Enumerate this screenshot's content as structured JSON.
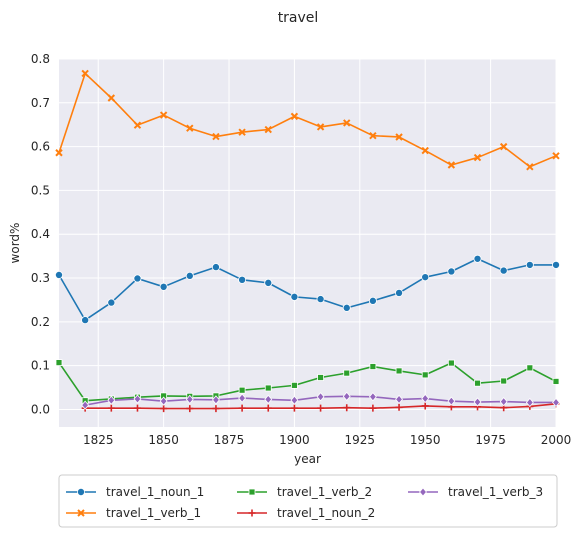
{
  "chart_data": {
    "type": "line",
    "title": "travel",
    "xlabel": "year",
    "ylabel": "word%",
    "xlim": [
      1810,
      2000
    ],
    "ylim": [
      -0.04,
      0.8
    ],
    "xticks": [
      1825,
      1850,
      1875,
      1900,
      1925,
      1950,
      1975,
      2000
    ],
    "yticks": [
      0.0,
      0.1,
      0.2,
      0.3,
      0.4,
      0.5,
      0.6,
      0.7,
      0.8
    ],
    "ytick_labels": [
      "0.0",
      "0.1",
      "0.2",
      "0.3",
      "0.4",
      "0.5",
      "0.6",
      "0.7",
      "0.8"
    ],
    "grid": true,
    "legend_location": "bottom-outside",
    "series": [
      {
        "name": "travel_1_noun_1",
        "color": "#1f77b4",
        "marker": "circle",
        "x": [
          1810,
          1820,
          1830,
          1840,
          1850,
          1860,
          1870,
          1880,
          1890,
          1900,
          1910,
          1920,
          1930,
          1940,
          1950,
          1960,
          1970,
          1980,
          1990,
          2000
        ],
        "values": [
          0.307,
          0.204,
          0.244,
          0.299,
          0.28,
          0.305,
          0.325,
          0.296,
          0.289,
          0.257,
          0.252,
          0.232,
          0.248,
          0.266,
          0.302,
          0.315,
          0.344,
          0.317,
          0.33,
          0.33
        ]
      },
      {
        "name": "travel_1_verb_1",
        "color": "#ff7f0e",
        "marker": "x",
        "x": [
          1810,
          1820,
          1830,
          1840,
          1850,
          1860,
          1870,
          1880,
          1890,
          1900,
          1910,
          1920,
          1930,
          1940,
          1950,
          1960,
          1970,
          1980,
          1990,
          2000
        ],
        "values": [
          0.586,
          0.767,
          0.711,
          0.649,
          0.672,
          0.642,
          0.623,
          0.633,
          0.639,
          0.669,
          0.645,
          0.654,
          0.625,
          0.622,
          0.591,
          0.558,
          0.575,
          0.6,
          0.554,
          0.579
        ]
      },
      {
        "name": "travel_1_verb_2",
        "color": "#2ca02c",
        "marker": "square",
        "x": [
          1810,
          1820,
          1830,
          1840,
          1850,
          1860,
          1870,
          1880,
          1890,
          1900,
          1910,
          1920,
          1930,
          1940,
          1950,
          1960,
          1970,
          1980,
          1990,
          2000
        ],
        "values": [
          0.107,
          0.02,
          0.024,
          0.028,
          0.031,
          0.03,
          0.031,
          0.044,
          0.049,
          0.055,
          0.073,
          0.083,
          0.098,
          0.088,
          0.079,
          0.106,
          0.06,
          0.065,
          0.095,
          0.064
        ]
      },
      {
        "name": "travel_1_noun_2",
        "color": "#d62728",
        "marker": "plus",
        "x": [
          1820,
          1830,
          1840,
          1850,
          1860,
          1870,
          1880,
          1890,
          1900,
          1910,
          1920,
          1930,
          1940,
          1950,
          1960,
          1970,
          1980,
          1990,
          2000
        ],
        "values": [
          0.003,
          0.003,
          0.003,
          0.002,
          0.002,
          0.002,
          0.003,
          0.003,
          0.003,
          0.003,
          0.004,
          0.003,
          0.005,
          0.008,
          0.006,
          0.006,
          0.004,
          0.007,
          0.013
        ]
      },
      {
        "name": "travel_1_verb_3",
        "color": "#9467bd",
        "marker": "diamond",
        "x": [
          1820,
          1830,
          1840,
          1850,
          1860,
          1870,
          1880,
          1890,
          1900,
          1910,
          1920,
          1930,
          1940,
          1950,
          1960,
          1970,
          1980,
          1990,
          2000
        ],
        "values": [
          0.01,
          0.021,
          0.024,
          0.019,
          0.023,
          0.022,
          0.026,
          0.023,
          0.021,
          0.029,
          0.03,
          0.029,
          0.023,
          0.025,
          0.019,
          0.017,
          0.018,
          0.016,
          0.016
        ]
      }
    ]
  }
}
